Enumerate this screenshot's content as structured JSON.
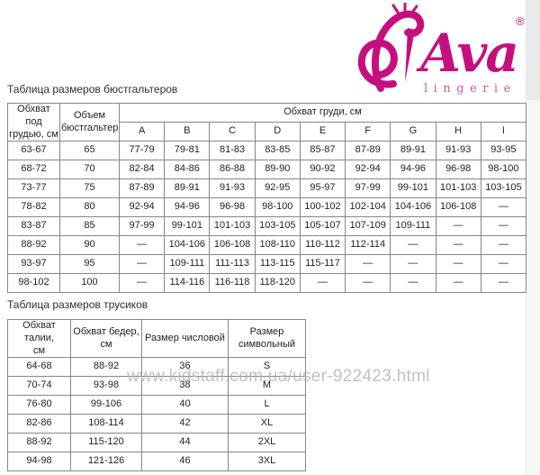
{
  "colors": {
    "brand": "#c4107e",
    "brand-light": "#d0569c",
    "watermark": "#b2b2b2",
    "border": "#878787",
    "border-dark": "#5a5a5a",
    "text": "#1f1f1f",
    "title": "#2e2e2e"
  },
  "logo": {
    "brand": "Ava",
    "registered": "®",
    "subtitle": "lingerie"
  },
  "bra_table": {
    "title": "Таблица размеров бюстгальтеров",
    "header": {
      "underbust": "Обхват под\nгрудью, см",
      "volume": "Объем\nбюстгальтера",
      "bust": "Обхват груди, см",
      "cups": [
        "A",
        "B",
        "C",
        "D",
        "E",
        "F",
        "G",
        "H",
        "I"
      ]
    },
    "rows": [
      [
        "63-67",
        "65",
        "77-79",
        "79-81",
        "81-83",
        "83-85",
        "85-87",
        "87-89",
        "89-91",
        "91-93",
        "93-95"
      ],
      [
        "68-72",
        "70",
        "82-84",
        "84-86",
        "86-88",
        "89-90",
        "90-92",
        "92-94",
        "94-96",
        "96-98",
        "98-100"
      ],
      [
        "73-77",
        "75",
        "87-89",
        "89-91",
        "91-93",
        "92-95",
        "95-97",
        "97-99",
        "99-101",
        "101-103",
        "103-105"
      ],
      [
        "78-82",
        "80",
        "92-94",
        "94-96",
        "96-98",
        "98-100",
        "100-102",
        "102-104",
        "104-106",
        "106-108",
        "—"
      ],
      [
        "83-87",
        "85",
        "97-99",
        "99-101",
        "101-103",
        "103-105",
        "105-107",
        "107-109",
        "109-111",
        "—",
        "—"
      ],
      [
        "88-92",
        "90",
        "—",
        "104-106",
        "106-108",
        "108-110",
        "110-112",
        "112-114",
        "—",
        "—",
        "—"
      ],
      [
        "93-97",
        "95",
        "—",
        "109-111",
        "111-113",
        "113-115",
        "115-117",
        "—",
        "—",
        "—",
        "—"
      ],
      [
        "98-102",
        "100",
        "—",
        "114-116",
        "116-118",
        "118-120",
        "—",
        "—",
        "—",
        "—",
        "—"
      ]
    ]
  },
  "panty_table": {
    "title": "Таблица размеров трусиков",
    "headers": [
      "Обхват талии,\nсм",
      "Обхват бедер,\nсм",
      "Размер числовой",
      "Размер\nсимвольный"
    ],
    "rows": [
      [
        "64-68",
        "88-92",
        "36",
        "S"
      ],
      [
        "70-74",
        "93-98",
        "38",
        "M"
      ],
      [
        "76-80",
        "99-106",
        "40",
        "L"
      ],
      [
        "82-86",
        "108-114",
        "42",
        "XL"
      ],
      [
        "88-92",
        "115-120",
        "44",
        "2XL"
      ],
      [
        "94-98",
        "121-126",
        "46",
        "3XL"
      ]
    ]
  },
  "watermark": "www.kidstaff.com.ua/user-922423.html"
}
